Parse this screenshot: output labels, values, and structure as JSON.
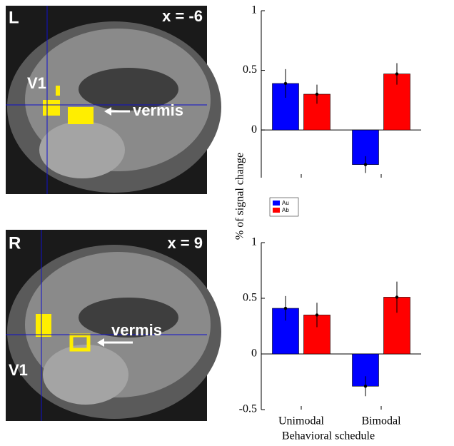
{
  "panels": [
    {
      "side": "L",
      "coord": "x = -6",
      "region": "V1",
      "arrow_label": "vermis"
    },
    {
      "side": "R",
      "coord": "x = 9",
      "region": "V1",
      "arrow_label": "vermis"
    }
  ],
  "ylabel": "% of signal change",
  "chart_data": [
    {
      "type": "bar",
      "categories": [
        null,
        null
      ],
      "series": [
        {
          "name": "Au",
          "color": "#0000ff",
          "values": [
            0.39,
            -0.29
          ],
          "errors": [
            0.12,
            0.07
          ]
        },
        {
          "name": "Ab",
          "color": "#ff0000",
          "values": [
            0.3,
            0.47
          ],
          "errors": [
            0.08,
            0.09
          ]
        }
      ],
      "ylim": [
        -0.4,
        1
      ],
      "yticks": [
        0,
        0.5,
        1
      ],
      "legend": "bottom-left"
    },
    {
      "type": "bar",
      "categories": [
        "Unimodal",
        "Bimodal"
      ],
      "xlabel": "Behavioral schedule",
      "series": [
        {
          "color": "#0000ff",
          "values": [
            0.41,
            -0.29
          ],
          "errors": [
            0.11,
            0.09
          ]
        },
        {
          "color": "#ff0000",
          "values": [
            0.35,
            0.51
          ],
          "errors": [
            0.11,
            0.14
          ]
        }
      ],
      "ylim": [
        -0.5,
        1
      ],
      "yticks": [
        -0.5,
        0,
        0.5,
        1
      ]
    }
  ]
}
